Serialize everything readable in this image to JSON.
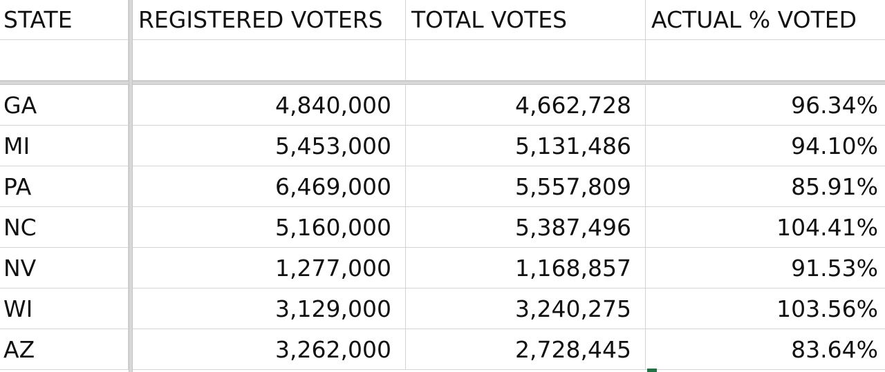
{
  "table": {
    "headers": [
      "STATE",
      "REGISTERED VOTERS",
      "TOTAL VOTES",
      "ACTUAL % VOTED"
    ],
    "rows": [
      [
        "GA",
        "4,840,000",
        "4,662,728",
        "96.34%"
      ],
      [
        "MI",
        "5,453,000",
        "5,131,486",
        "94.10%"
      ],
      [
        "PA",
        "6,469,000",
        "5,557,809",
        "85.91%"
      ],
      [
        "NC",
        "5,160,000",
        "5,387,496",
        "104.41%"
      ],
      [
        "NV",
        "1,277,000",
        "1,168,857",
        "91.53%"
      ],
      [
        "WI",
        "3,129,000",
        "3,240,275",
        "103.56%"
      ],
      [
        "AZ",
        "3,262,000",
        "2,728,445",
        "83.64%"
      ]
    ]
  },
  "colors": {
    "gridline": "#d4d4d4",
    "freeze_pane": "#d8d8d8",
    "selection_accent": "#217346"
  }
}
